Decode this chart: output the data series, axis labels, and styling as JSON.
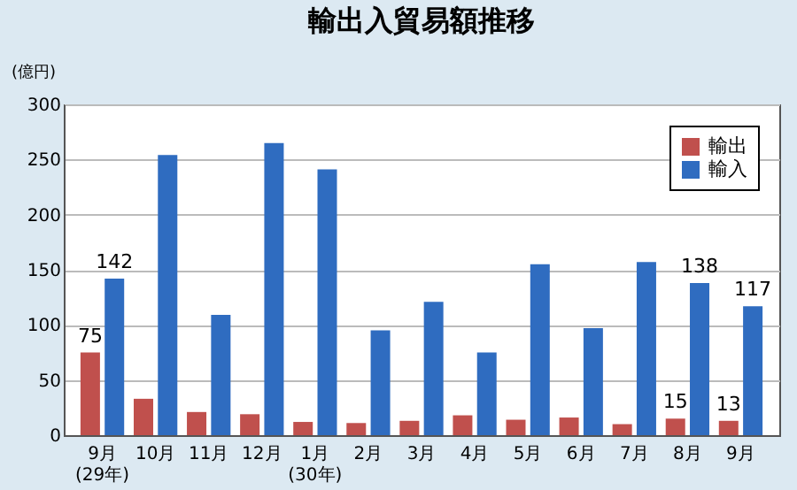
{
  "chart_data": {
    "type": "bar",
    "title": "輸出入貿易額推移",
    "ylabel": "(億円)",
    "categories": [
      "9月\n(29年)",
      "10月",
      "11月",
      "12月",
      "1月\n(30年)",
      "2月",
      "3月",
      "4月",
      "5月",
      "6月",
      "7月",
      "8月",
      "9月"
    ],
    "series": [
      {
        "name": "輸出",
        "color": "#c0504d",
        "values": [
          75,
          33,
          21,
          19,
          12,
          11,
          13,
          18,
          14,
          16,
          10,
          15,
          13
        ],
        "value_labels": [
          "75",
          null,
          null,
          null,
          null,
          null,
          null,
          null,
          null,
          null,
          null,
          "15",
          "13"
        ]
      },
      {
        "name": "輸入",
        "color": "#2f6cc0",
        "values": [
          142,
          254,
          109,
          265,
          241,
          95,
          121,
          75,
          155,
          97,
          157,
          138,
          117
        ],
        "value_labels": [
          "142",
          null,
          null,
          null,
          null,
          null,
          null,
          null,
          null,
          null,
          null,
          "138",
          "117"
        ]
      }
    ],
    "ylim": [
      0,
      300
    ],
    "yticks": [
      0,
      50,
      100,
      150,
      200,
      250,
      300
    ],
    "grid": "y",
    "legend": "top right"
  }
}
